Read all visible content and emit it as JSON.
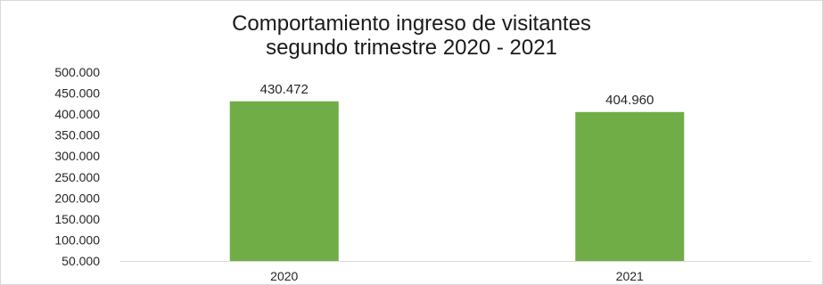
{
  "chart_data": {
    "type": "bar",
    "title": "Comportamiento ingreso de visitantes",
    "subtitle": "segundo trimestre 2020 - 2021",
    "categories": [
      "2020",
      "2021"
    ],
    "values": [
      430472,
      404960
    ],
    "data_labels": [
      "430.472",
      "404.960"
    ],
    "y_ticks": [
      50000,
      100000,
      150000,
      200000,
      250000,
      300000,
      350000,
      400000,
      450000,
      500000
    ],
    "y_tick_labels": [
      "50.000",
      "100.000",
      "150.000",
      "200.000",
      "250.000",
      "300.000",
      "350.000",
      "400.000",
      "450.000",
      "500.000"
    ],
    "ylim": [
      50000,
      500000
    ],
    "grid": false,
    "legend": "none",
    "bar_color": "#70ad47"
  }
}
